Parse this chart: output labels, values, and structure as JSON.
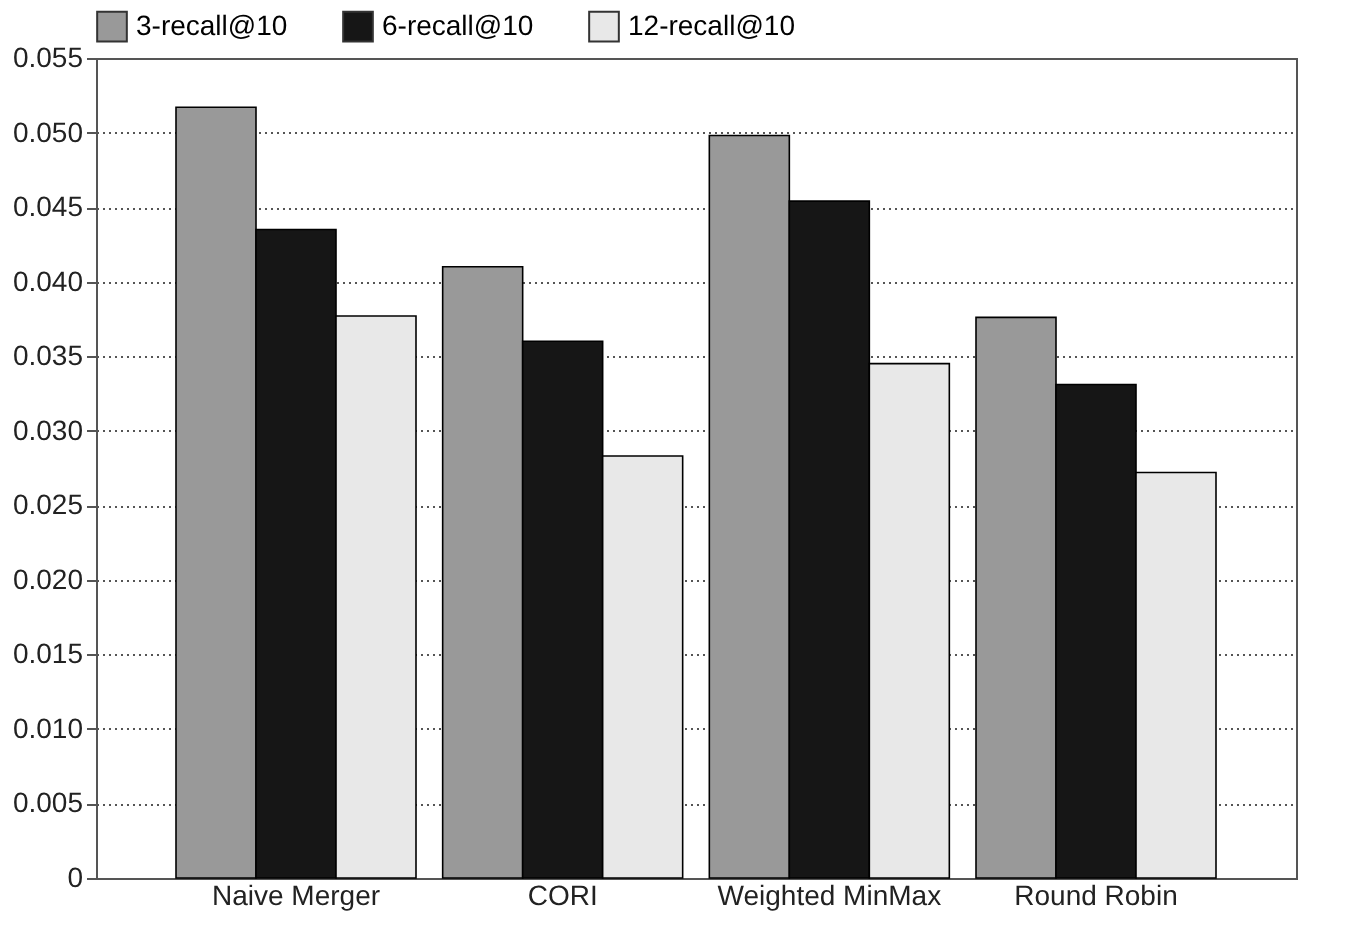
{
  "chart_data": {
    "type": "bar",
    "categories": [
      "Naive Merger",
      "CORI",
      "Weighted MinMax",
      "Round Robin"
    ],
    "series": [
      {
        "name": "3-recall@10",
        "color": "#999999",
        "values": [
          0.0517,
          0.041,
          0.0498,
          0.0376
        ]
      },
      {
        "name": "6-recall@10",
        "color": "#161616",
        "values": [
          0.0435,
          0.036,
          0.0454,
          0.0331
        ]
      },
      {
        "name": "12-recall@10",
        "color": "#e8e8e8",
        "values": [
          0.0377,
          0.0283,
          0.0345,
          0.0272
        ]
      }
    ],
    "ylim": [
      0,
      0.055
    ],
    "yticks": [
      0,
      0.005,
      {
        "value": 0.01,
        "label": "0.010"
      },
      0.015,
      {
        "value": 0.02,
        "label": "0.020"
      },
      0.025,
      {
        "value": 0.03,
        "label": "0.030"
      },
      0.035,
      {
        "value": 0.04,
        "label": "0.040"
      },
      0.045,
      {
        "value": 0.05,
        "label": "0.050"
      },
      0.055
    ],
    "grid": "y",
    "legend": "top"
  }
}
